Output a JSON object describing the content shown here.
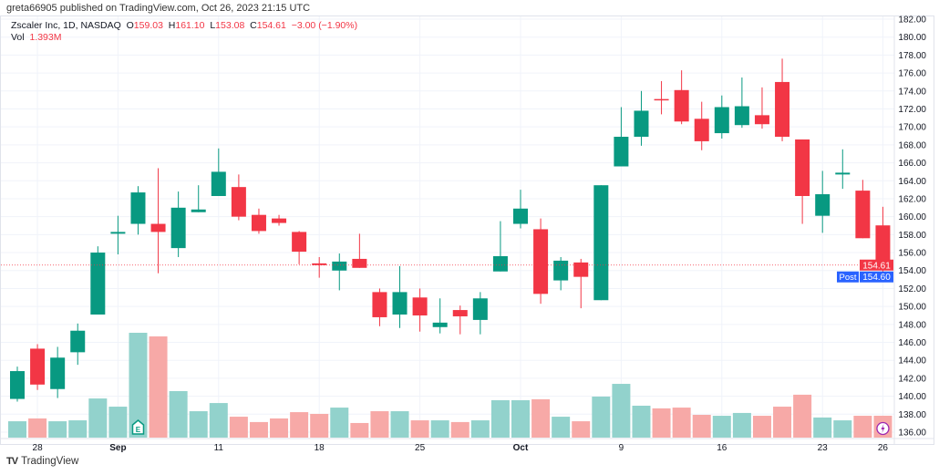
{
  "header": {
    "published": "greta66905 published on TradingView.com, Oct 26, 2023 21:15 UTC"
  },
  "legend": {
    "symbol": "Zscaler Inc, 1D, NASDAQ",
    "o_label": "O",
    "o": "159.03",
    "h_label": "H",
    "h": "161.10",
    "l_label": "L",
    "l": "153.08",
    "c_label": "C",
    "c": "154.61",
    "change": "−3.00 (−1.90%)",
    "vol_label": "Vol",
    "vol": "1.393M"
  },
  "price_axis": {
    "ticks": [
      "182.00",
      "180.00",
      "178.00",
      "176.00",
      "174.00",
      "172.00",
      "170.00",
      "168.00",
      "166.00",
      "164.00",
      "162.00",
      "160.00",
      "158.00",
      "156.00",
      "154.00",
      "152.00",
      "150.00",
      "148.00",
      "146.00",
      "144.00",
      "142.00",
      "140.00",
      "138.00",
      "136.00"
    ],
    "last_price_label": "154.61",
    "post_label": "Post",
    "post_price_label": "154.60"
  },
  "time_axis": [
    {
      "label": "28",
      "bar": 1,
      "bold": false
    },
    {
      "label": "Sep",
      "bar": 5,
      "bold": true
    },
    {
      "label": "11",
      "bar": 10,
      "bold": false
    },
    {
      "label": "18",
      "bar": 15,
      "bold": false
    },
    {
      "label": "25",
      "bar": 20,
      "bold": false
    },
    {
      "label": "Oct",
      "bar": 25,
      "bold": true
    },
    {
      "label": "9",
      "bar": 30,
      "bold": false
    },
    {
      "label": "16",
      "bar": 35,
      "bold": false
    },
    {
      "label": "23",
      "bar": 40,
      "bold": false
    },
    {
      "label": "26",
      "bar": 43,
      "bold": false
    }
  ],
  "markers": {
    "earnings": "E",
    "earnings_bar": 6
  },
  "brand": {
    "logo": "TV",
    "name": "TradingView"
  },
  "colors": {
    "up": "#089981",
    "down": "#f23645",
    "vol_up": "#92d2cc",
    "vol_down": "#f7a9a7",
    "post": "#2962ff"
  },
  "chart_data": {
    "type": "candlestick",
    "title": "Zscaler Inc, 1D, NASDAQ",
    "ylim": [
      135.5,
      182.5
    ],
    "ohlc": [
      [
        139.7,
        143.3,
        139.4,
        142.8
      ],
      [
        145.3,
        145.8,
        140.7,
        141.3
      ],
      [
        140.8,
        145.5,
        139.8,
        144.3
      ],
      [
        144.9,
        148.1,
        143.5,
        147.3
      ],
      [
        149.1,
        156.7,
        149.1,
        156.0
      ],
      [
        158.1,
        160.1,
        155.8,
        158.3
      ],
      [
        159.2,
        163.4,
        158.0,
        162.7
      ],
      [
        159.2,
        165.4,
        153.7,
        158.3
      ],
      [
        156.5,
        162.8,
        155.5,
        161.0
      ],
      [
        160.5,
        163.5,
        160.5,
        160.8
      ],
      [
        162.3,
        167.6,
        162.3,
        165.0
      ],
      [
        163.3,
        164.7,
        159.6,
        160.0
      ],
      [
        160.2,
        160.9,
        158.1,
        158.4
      ],
      [
        159.8,
        160.2,
        159.0,
        159.3
      ],
      [
        158.3,
        158.4,
        154.7,
        156.1
      ],
      [
        154.8,
        155.5,
        153.2,
        154.6
      ],
      [
        154.0,
        155.9,
        151.8,
        155.0
      ],
      [
        155.3,
        158.1,
        154.3,
        154.3
      ],
      [
        151.6,
        152.0,
        147.8,
        148.8
      ],
      [
        149.1,
        154.5,
        147.6,
        151.6
      ],
      [
        151.0,
        152.0,
        147.2,
        149.0
      ],
      [
        147.7,
        150.9,
        147.0,
        148.2
      ],
      [
        149.6,
        150.1,
        146.9,
        148.9
      ],
      [
        148.5,
        151.6,
        146.9,
        150.9
      ],
      [
        153.9,
        159.5,
        153.9,
        155.6
      ],
      [
        159.2,
        163.0,
        158.7,
        160.9
      ],
      [
        158.6,
        159.8,
        150.3,
        151.4
      ],
      [
        152.9,
        155.5,
        151.8,
        155.1
      ],
      [
        154.9,
        155.3,
        149.8,
        153.3
      ],
      [
        150.7,
        163.5,
        150.7,
        163.5
      ],
      [
        165.6,
        172.2,
        165.6,
        168.9
      ],
      [
        168.9,
        174.0,
        167.9,
        171.8
      ],
      [
        173.1,
        175.1,
        171.4,
        173.0
      ],
      [
        174.1,
        176.3,
        170.3,
        170.6
      ],
      [
        170.9,
        172.8,
        167.4,
        168.4
      ],
      [
        169.3,
        173.5,
        168.7,
        172.2
      ],
      [
        170.2,
        175.5,
        169.9,
        172.3
      ],
      [
        171.3,
        174.4,
        169.8,
        170.3
      ],
      [
        175.0,
        177.6,
        168.4,
        168.9
      ],
      [
        168.6,
        168.6,
        159.2,
        162.3
      ],
      [
        160.1,
        165.1,
        158.2,
        162.5
      ],
      [
        164.7,
        167.5,
        163.1,
        164.9
      ],
      [
        162.9,
        164.1,
        157.6,
        157.6
      ],
      [
        159.03,
        161.1,
        153.08,
        154.61
      ]
    ],
    "volume_m": [
      1.04,
      1.22,
      1.04,
      1.1,
      2.49,
      1.97,
      6.67,
      6.44,
      2.96,
      1.68,
      2.2,
      1.33,
      0.99,
      1.22,
      1.62,
      1.51,
      1.91,
      0.93,
      1.68,
      1.68,
      1.1,
      1.1,
      0.99,
      1.1,
      2.38,
      2.38,
      2.44,
      1.33,
      1.04,
      2.61,
      3.42,
      2.03,
      1.86,
      1.91,
      1.45,
      1.39,
      1.57,
      1.39,
      1.97,
      2.73,
      1.28,
      1.1,
      1.39,
      1.393
    ],
    "last_close": 154.61
  }
}
